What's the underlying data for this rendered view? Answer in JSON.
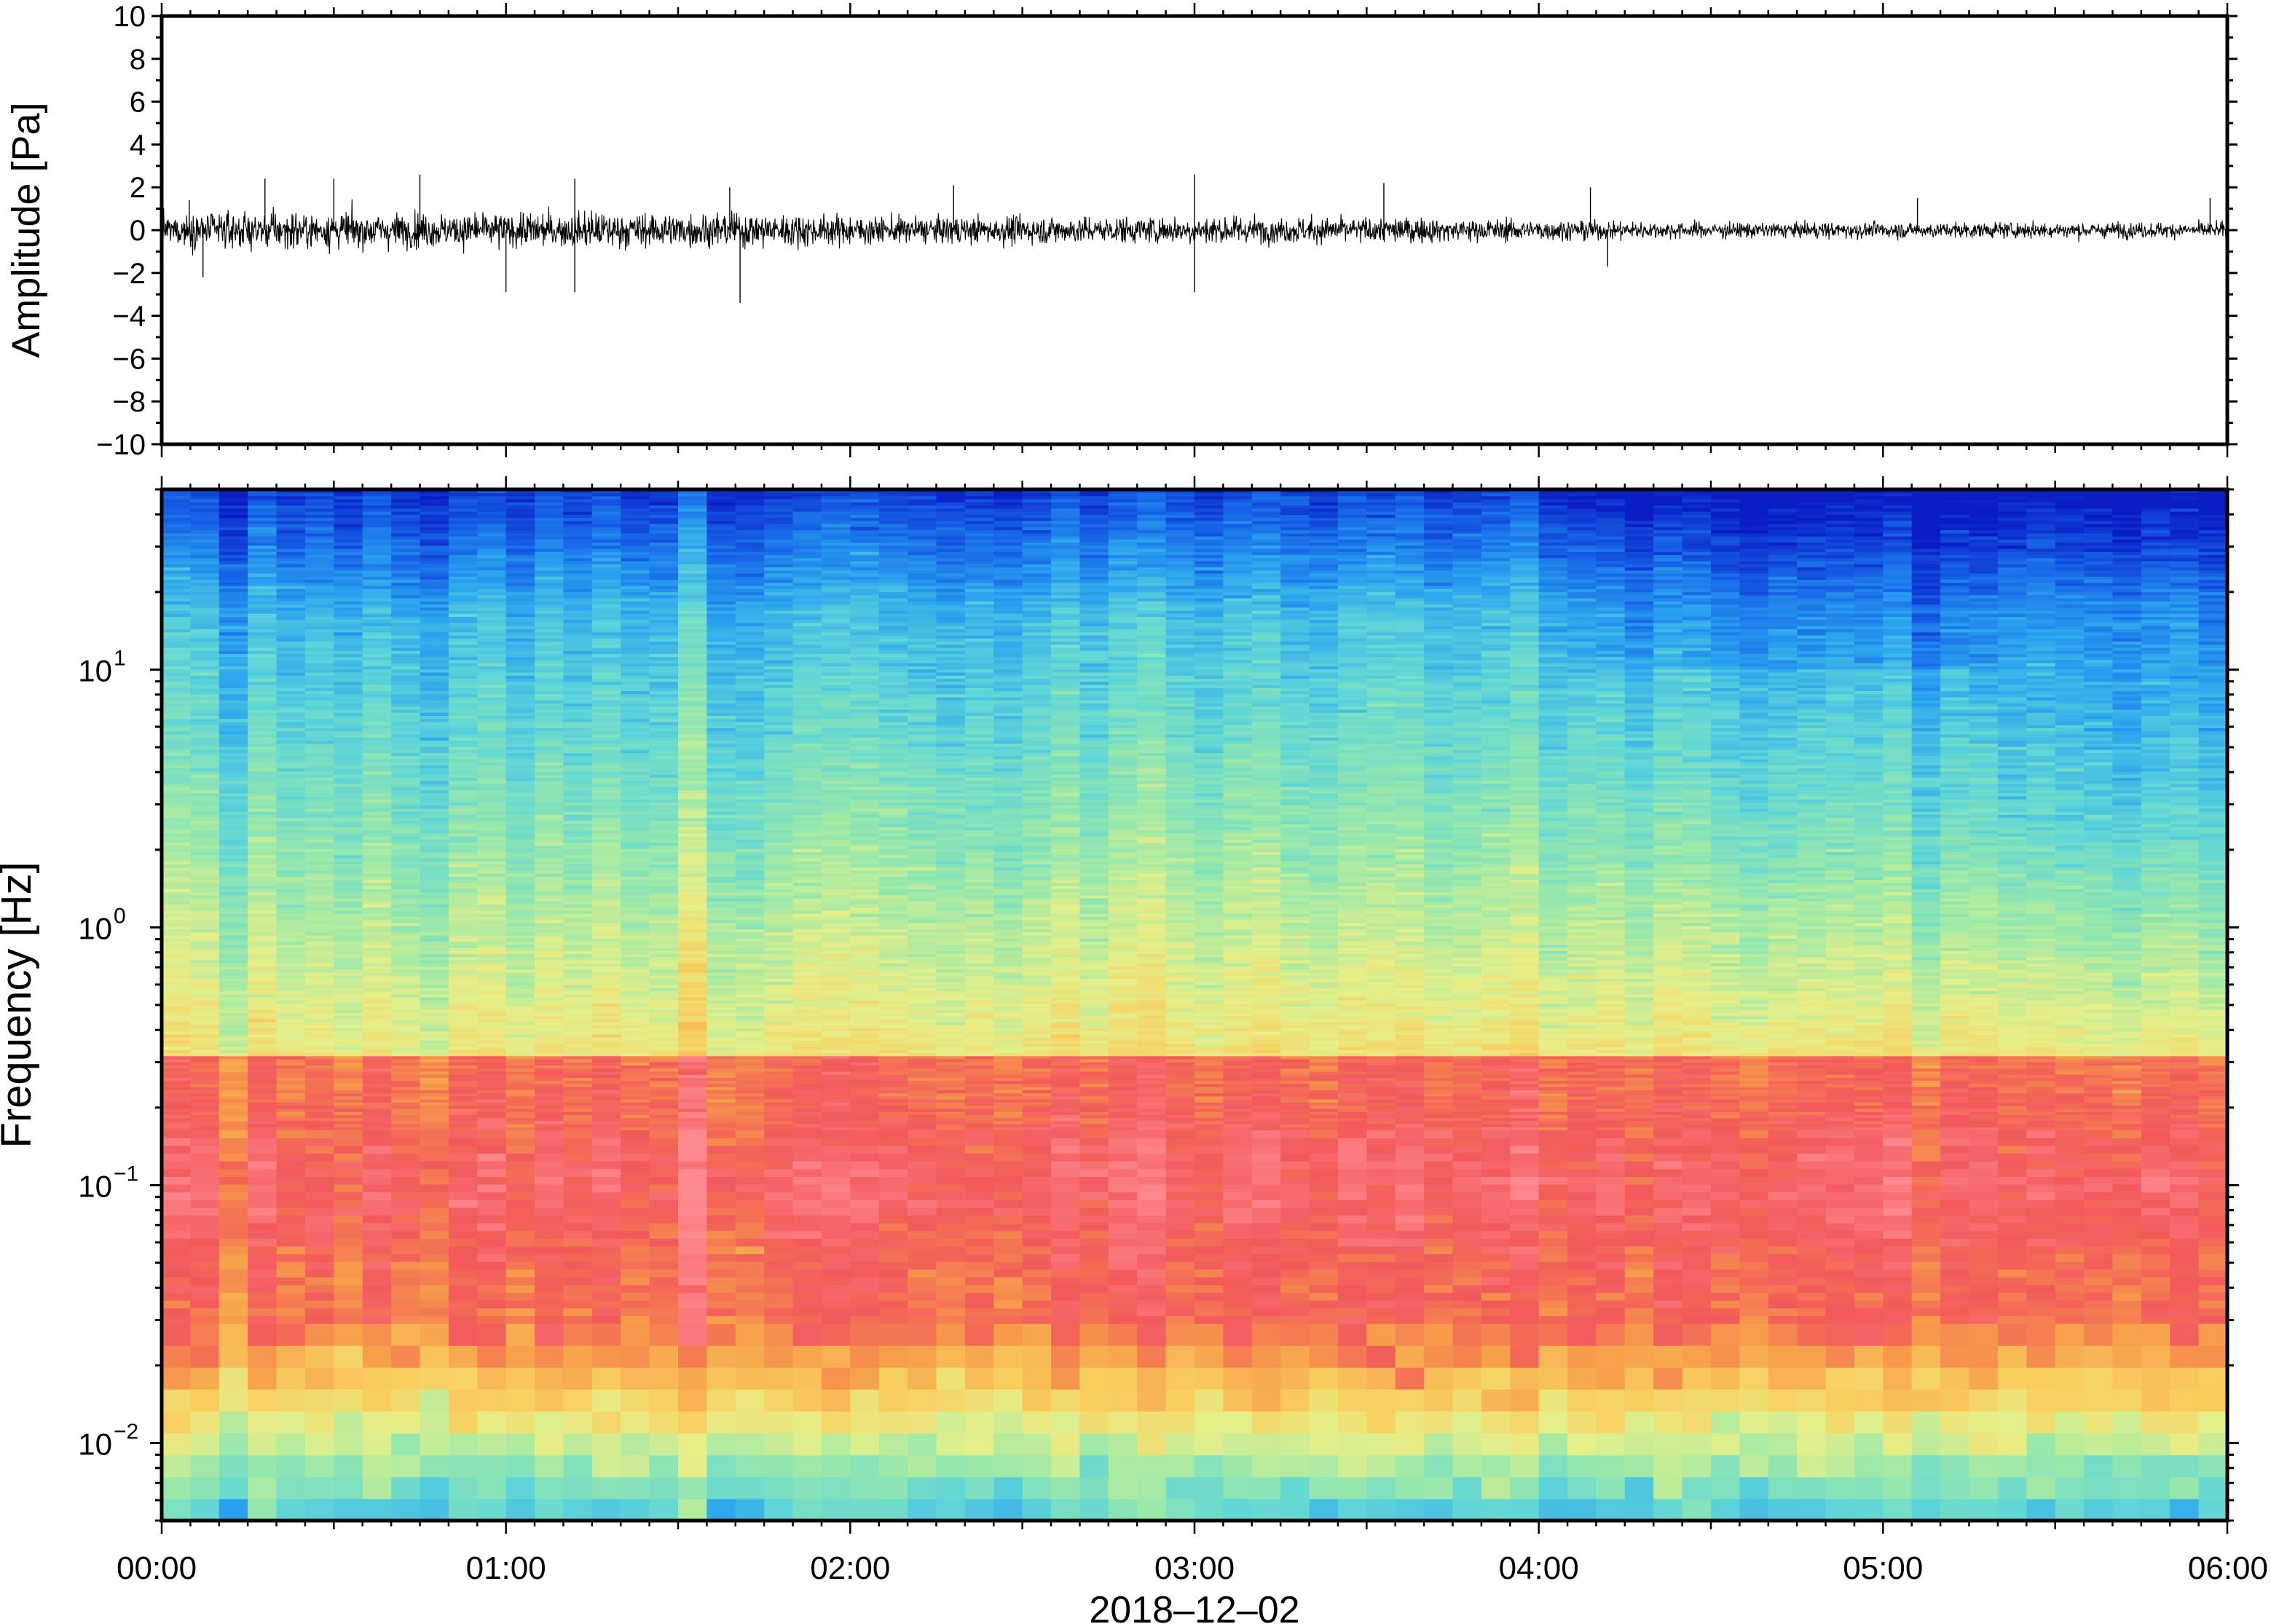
{
  "figure": {
    "date_label": "2018–12–02"
  },
  "chart_data": [
    {
      "type": "line",
      "ylabel": "Amplitude [Pa]",
      "xlabel": "",
      "xlim": [
        "00:00",
        "06:00"
      ],
      "ylim": [
        -10,
        10
      ],
      "y_ticks": [
        10,
        8,
        6,
        4,
        2,
        0,
        -2,
        -4,
        -6,
        -8,
        -10
      ],
      "y_tick_labels": [
        "10",
        "8",
        "6",
        "4",
        "2",
        "0",
        "−2",
        "−4",
        "−6",
        "−8",
        "−10"
      ],
      "series": [
        {
          "color": "#000000",
          "envelope_hours": [
            0,
            0.25,
            0.5,
            0.75,
            1.0,
            1.25,
            1.5,
            1.75,
            2.0,
            2.25,
            2.5,
            2.75,
            3.0,
            3.25,
            3.5,
            3.75,
            4.0,
            4.25,
            4.5,
            4.75,
            5.0,
            5.25,
            5.5,
            5.75,
            6.0
          ],
          "envelope_amplitude": [
            1.2,
            1.4,
            1.4,
            1.3,
            1.3,
            1.4,
            1.3,
            1.3,
            1.1,
            1.0,
            1.1,
            1.0,
            1.1,
            1.0,
            1.0,
            0.9,
            0.8,
            0.7,
            0.6,
            0.6,
            0.6,
            0.6,
            0.6,
            0.6,
            0.6
          ],
          "peaks": [
            {
              "t": 0.08,
              "v": 1.4
            },
            {
              "t": 0.12,
              "v": -2.2
            },
            {
              "t": 0.3,
              "v": 2.4
            },
            {
              "t": 0.5,
              "v": 2.4
            },
            {
              "t": 0.75,
              "v": 2.6
            },
            {
              "t": 1.0,
              "v": -2.9
            },
            {
              "t": 1.2,
              "v": 2.4
            },
            {
              "t": 1.2,
              "v": -2.9
            },
            {
              "t": 1.65,
              "v": 2.0
            },
            {
              "t": 1.68,
              "v": -3.4
            },
            {
              "t": 2.3,
              "v": 2.1
            },
            {
              "t": 3.0,
              "v": 2.6
            },
            {
              "t": 3.0,
              "v": -2.9
            },
            {
              "t": 3.55,
              "v": 2.2
            },
            {
              "t": 4.15,
              "v": 2.0
            },
            {
              "t": 4.2,
              "v": -1.7
            },
            {
              "t": 5.1,
              "v": 1.5
            },
            {
              "t": 5.95,
              "v": 1.5
            }
          ]
        }
      ]
    },
    {
      "type": "heatmap",
      "ylabel": "Frequency [Hz]",
      "xlabel": "2018–12–02",
      "xlim": [
        "00:00",
        "06:00"
      ],
      "ylim": [
        0.005,
        50
      ],
      "y_scale": "log",
      "y_ticks": [
        10,
        1,
        0.1,
        0.01
      ],
      "y_tick_labels": [
        {
          "base": "10",
          "exp": "1"
        },
        {
          "base": "10",
          "exp": "0"
        },
        {
          "base": "10",
          "exp": "−1"
        },
        {
          "base": "10",
          "exp": "−2"
        }
      ],
      "x_ticks": [
        "00:00",
        "01:00",
        "02:00",
        "03:00",
        "04:00",
        "05:00",
        "06:00"
      ],
      "colormap": "jet / spectral (blue low power, red high power)",
      "colormap_stops": [
        "#0a1cc4",
        "#1660e6",
        "#2aa3ef",
        "#5fd6d8",
        "#98e8ab",
        "#e6f08a",
        "#f8cf5f",
        "#f7a04a",
        "#f2595a",
        "#ff8a8f"
      ],
      "features": {
        "high_power_band_hz": [
          0.03,
          0.3
        ],
        "microseism_peak_hz": 0.1,
        "low_power_top_hz": 30,
        "trend": "high-frequency power decreases after 04:00"
      }
    }
  ]
}
